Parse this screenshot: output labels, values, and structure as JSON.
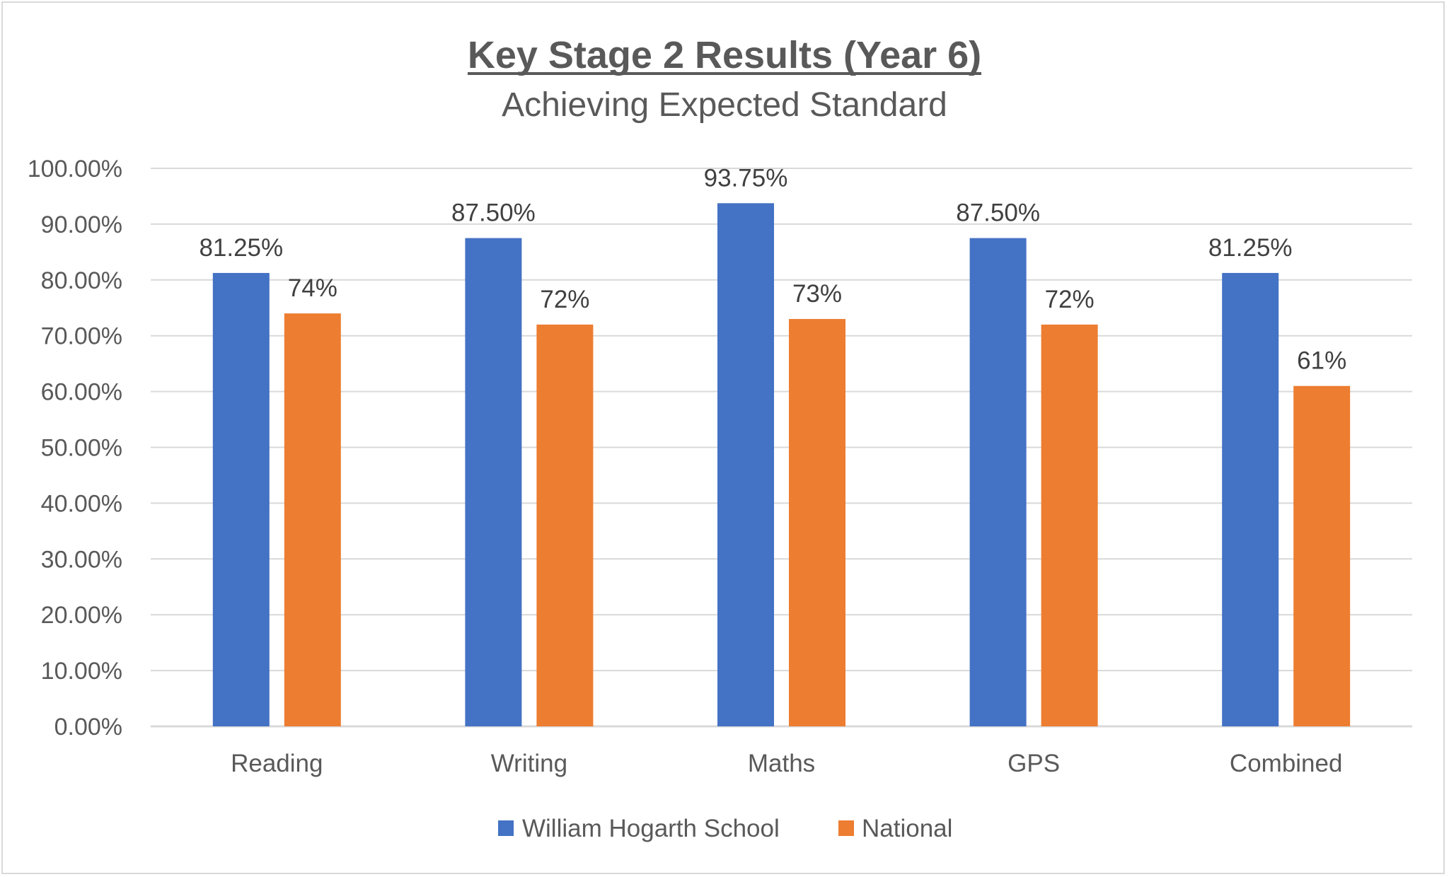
{
  "chart_data": {
    "type": "bar",
    "title": "Key Stage 2 Results (Year 6)",
    "subtitle": "Achieving Expected Standard",
    "categories": [
      "Reading",
      "Writing",
      "Maths",
      "GPS",
      "Combined"
    ],
    "series": [
      {
        "name": "William Hogarth School",
        "color": "#4472C4",
        "values": [
          81.25,
          87.5,
          93.75,
          87.5,
          81.25
        ],
        "labels": [
          "81.25%",
          "87.50%",
          "93.75%",
          "87.50%",
          "81.25%"
        ]
      },
      {
        "name": "National",
        "color": "#ED7D31",
        "values": [
          74,
          72,
          73,
          72,
          61
        ],
        "labels": [
          "74%",
          "72%",
          "73%",
          "72%",
          "61%"
        ]
      }
    ],
    "ylim": [
      0,
      100
    ],
    "yticks": [
      0,
      10,
      20,
      30,
      40,
      50,
      60,
      70,
      80,
      90,
      100
    ],
    "ytick_labels": [
      "0.00%",
      "10.00%",
      "20.00%",
      "30.00%",
      "40.00%",
      "50.00%",
      "60.00%",
      "70.00%",
      "80.00%",
      "90.00%",
      "100.00%"
    ],
    "xlabel": "",
    "ylabel": "",
    "grid": true,
    "legend_position": "bottom"
  }
}
